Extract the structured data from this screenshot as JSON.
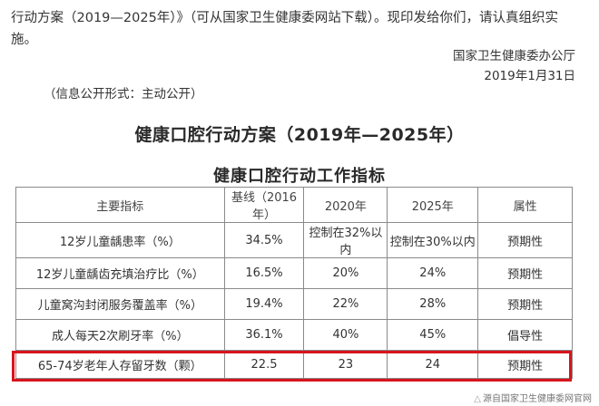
{
  "notice": {
    "paragraph": "行动方案（2019—2025年）》（可从国家卫生健康委网站下载）。现印发给你们，请认真组织实施。",
    "issuer": "国家卫生健康委办公厅",
    "date": "2019年1月31日",
    "disclosure": "（信息公开形式：主动公开）"
  },
  "document": {
    "title": "健康口腔行动方案（2019年—2025年）",
    "table_title": "健康口腔行动工作指标"
  },
  "table": {
    "headers": [
      "主要指标",
      "基线（2016年）",
      "2020年",
      "2025年",
      "属性"
    ],
    "rows": [
      [
        "12岁儿童龋患率（%）",
        "34.5%",
        "控制在32%以内",
        "控制在30%以内",
        "预期性"
      ],
      [
        "12岁儿童龋齿充填治疗比（%）",
        "16.5%",
        "20%",
        "24%",
        "预期性"
      ],
      [
        "儿童窝沟封闭服务覆盖率（%）",
        "19.4%",
        "22%",
        "28%",
        "预期性"
      ],
      [
        "成人每天2次刷牙率（%）",
        "36.1%",
        "40%",
        "45%",
        "倡导性"
      ],
      [
        "65-74岁老年人存留牙数（颗）",
        "22.5",
        "23",
        "24",
        "预期性"
      ]
    ]
  },
  "highlight": {
    "color": "#d8141d"
  },
  "watermark": {
    "icon": "warning-triangle-icon",
    "text": "源自国家卫生健康委网官网"
  }
}
